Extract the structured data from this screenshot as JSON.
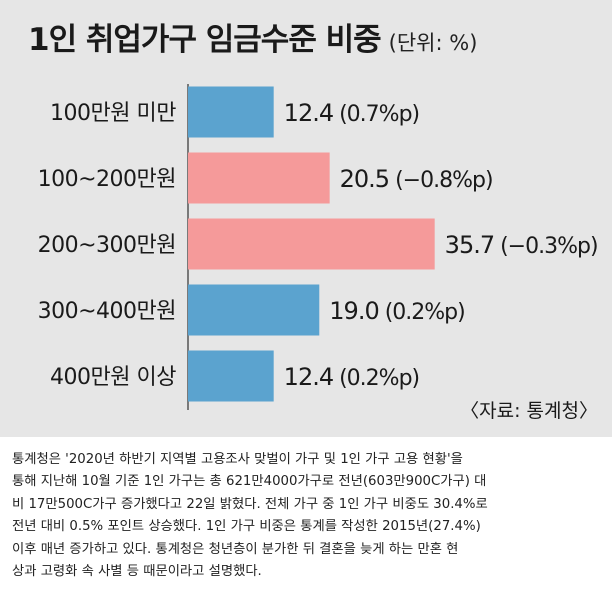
{
  "chart_data": {
    "type": "bar",
    "orientation": "horizontal",
    "title": "1인 취업가구 임금수준 비중",
    "unit": "(단위: %)",
    "categories": [
      "100만원 미만",
      "100~200만원",
      "200~300만원",
      "300~400만원",
      "400만원 이상"
    ],
    "values": [
      12.4,
      20.5,
      35.7,
      19.0,
      12.4
    ],
    "value_labels": [
      "12.4",
      "20.5",
      "35.7",
      "19.0",
      "12.4"
    ],
    "change_labels": [
      "(0.7%p)",
      "(−0.8%p)",
      "(−0.3%p)",
      "(0.2%p)",
      "(0.2%p)"
    ],
    "bar_colors": [
      "#5ba3cf",
      "#f59a9a",
      "#f59a9a",
      "#5ba3cf",
      "#5ba3cf"
    ],
    "source": "〈자료: 통계청〉"
  },
  "article": {
    "lines": [
      "통계청은 '2020년 하반기 지역별 고용조사 맞벌이 가구 및 1인 가구 고용 현황'을",
      "통해 지난해 10월 기준 1인 가구는 총 621만4000가구로 전년(603만900C가구) 대",
      "비 17만500C가구 증가했다고 22일 밝혔다. 전체 가구 중 1인 가구 비중도 30.4%로",
      "전년 대비 0.5% 포인트 상승했다. 1인 가구 비중은 통계를 작성한 2015년(27.4%)",
      "이후 매년 증가하고 있다. 통계청은 청년층이 분가한 뒤 결혼을 늦게 하는 만혼 현",
      "상과 고령화 속 사별 등 때문이라고 설명했다."
    ]
  }
}
